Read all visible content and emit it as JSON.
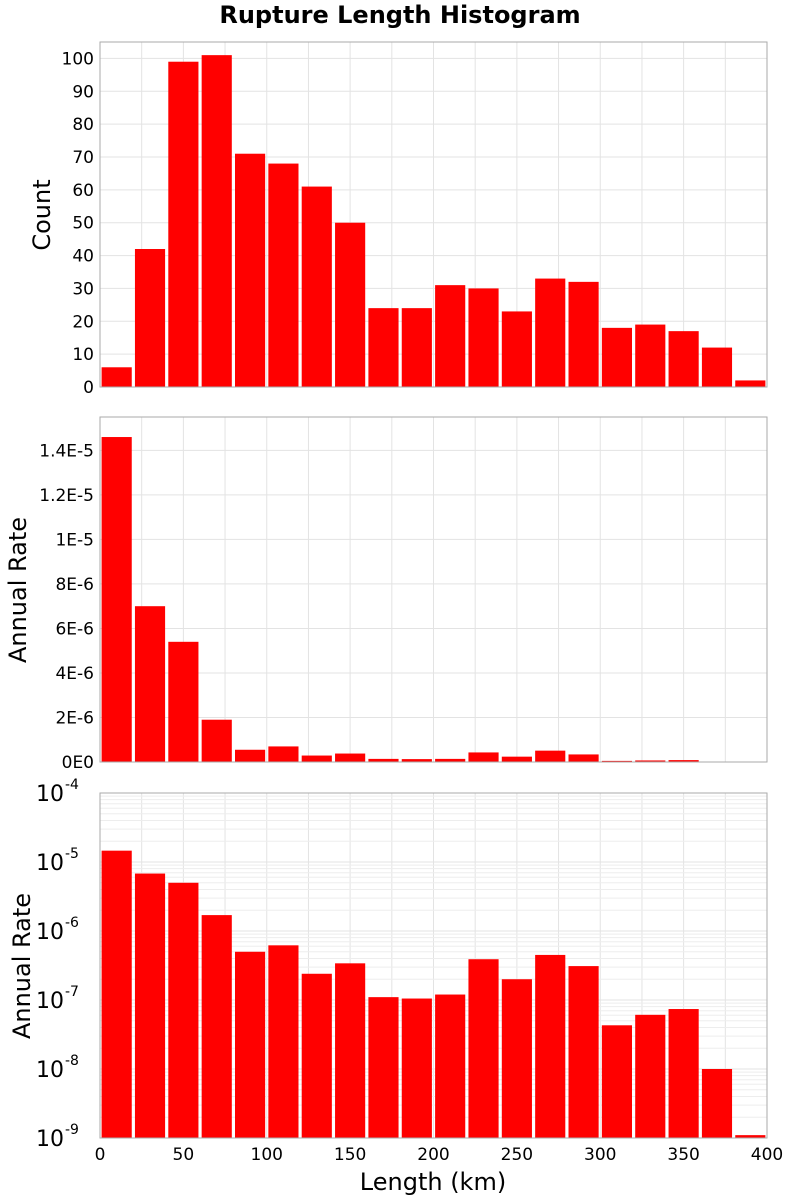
{
  "title": "Rupture Length Histogram",
  "chart_data": [
    {
      "type": "bar",
      "panel": "count",
      "xlabel": "Length (km)",
      "ylabel": "Count",
      "bin_width": 20,
      "bins": [
        0,
        20,
        40,
        60,
        80,
        100,
        120,
        140,
        160,
        180,
        200,
        220,
        240,
        260,
        280,
        300,
        320,
        340,
        360,
        380
      ],
      "values": [
        6,
        42,
        99,
        101,
        71,
        68,
        61,
        50,
        24,
        24,
        31,
        30,
        23,
        33,
        32,
        18,
        19,
        17,
        12,
        2
      ],
      "xlim": [
        0,
        400
      ],
      "ylim": [
        0,
        105
      ],
      "yticks": [
        0,
        10,
        20,
        30,
        40,
        50,
        60,
        70,
        80,
        90,
        100
      ],
      "ytick_labels": [
        "0",
        "10",
        "20",
        "30",
        "40",
        "50",
        "60",
        "70",
        "80",
        "90",
        "100"
      ],
      "color": "#ff0000",
      "grid": true
    },
    {
      "type": "bar",
      "panel": "rate-linear",
      "xlabel": "Length (km)",
      "ylabel": "Annual Rate",
      "bin_width": 20,
      "bins": [
        0,
        20,
        40,
        60,
        80,
        100,
        120,
        140,
        160,
        180,
        200,
        220,
        240,
        260,
        280,
        300,
        320,
        340,
        360,
        380
      ],
      "values": [
        1.46e-05,
        7e-06,
        5.4e-06,
        1.9e-06,
        5.5e-07,
        7e-07,
        2.9e-07,
        3.8e-07,
        1.4e-07,
        1.3e-07,
        1.4e-07,
        4.3e-07,
        2.4e-07,
        5.1e-07,
        3.4e-07,
        5e-08,
        7e-08,
        8.5e-08,
        1.2e-08,
        1.2e-09
      ],
      "xlim": [
        0,
        400
      ],
      "ylim": [
        0,
        1.55e-05
      ],
      "yticks": [
        0,
        2e-06,
        4e-06,
        6e-06,
        8e-06,
        1e-05,
        1.2e-05,
        1.4e-05
      ],
      "ytick_labels": [
        "0E0",
        "2E-6",
        "4E-6",
        "6E-6",
        "8E-6",
        "1E-5",
        "1.2E-5",
        "1.4E-5"
      ],
      "color": "#ff0000",
      "grid": true
    },
    {
      "type": "bar",
      "panel": "rate-log",
      "xlabel": "Length (km)",
      "ylabel": "Annual Rate",
      "yscale": "log",
      "bin_width": 20,
      "bins": [
        0,
        20,
        40,
        60,
        80,
        100,
        120,
        140,
        160,
        180,
        200,
        220,
        240,
        260,
        280,
        300,
        320,
        340,
        360,
        380
      ],
      "values": [
        1.46e-05,
        6.8e-06,
        5e-06,
        1.7e-06,
        5e-07,
        6.2e-07,
        2.4e-07,
        3.4e-07,
        1.1e-07,
        1.05e-07,
        1.2e-07,
        3.9e-07,
        2e-07,
        4.5e-07,
        3.1e-07,
        4.3e-08,
        6.1e-08,
        7.4e-08,
        1e-08,
        1.1e-09
      ],
      "xlim": [
        0,
        400
      ],
      "ylim": [
        1e-09,
        0.0001
      ],
      "yticks_base": [
        "10",
        "10",
        "10",
        "10",
        "10",
        "10"
      ],
      "yticks_exp": [
        "-9",
        "-8",
        "-7",
        "-6",
        "-5",
        "-4"
      ],
      "xticks": [
        0,
        50,
        100,
        150,
        200,
        250,
        300,
        350,
        400
      ],
      "xtick_labels": [
        "0",
        "50",
        "100",
        "150",
        "200",
        "250",
        "300",
        "350",
        "400"
      ],
      "color": "#ff0000",
      "grid": true
    }
  ]
}
